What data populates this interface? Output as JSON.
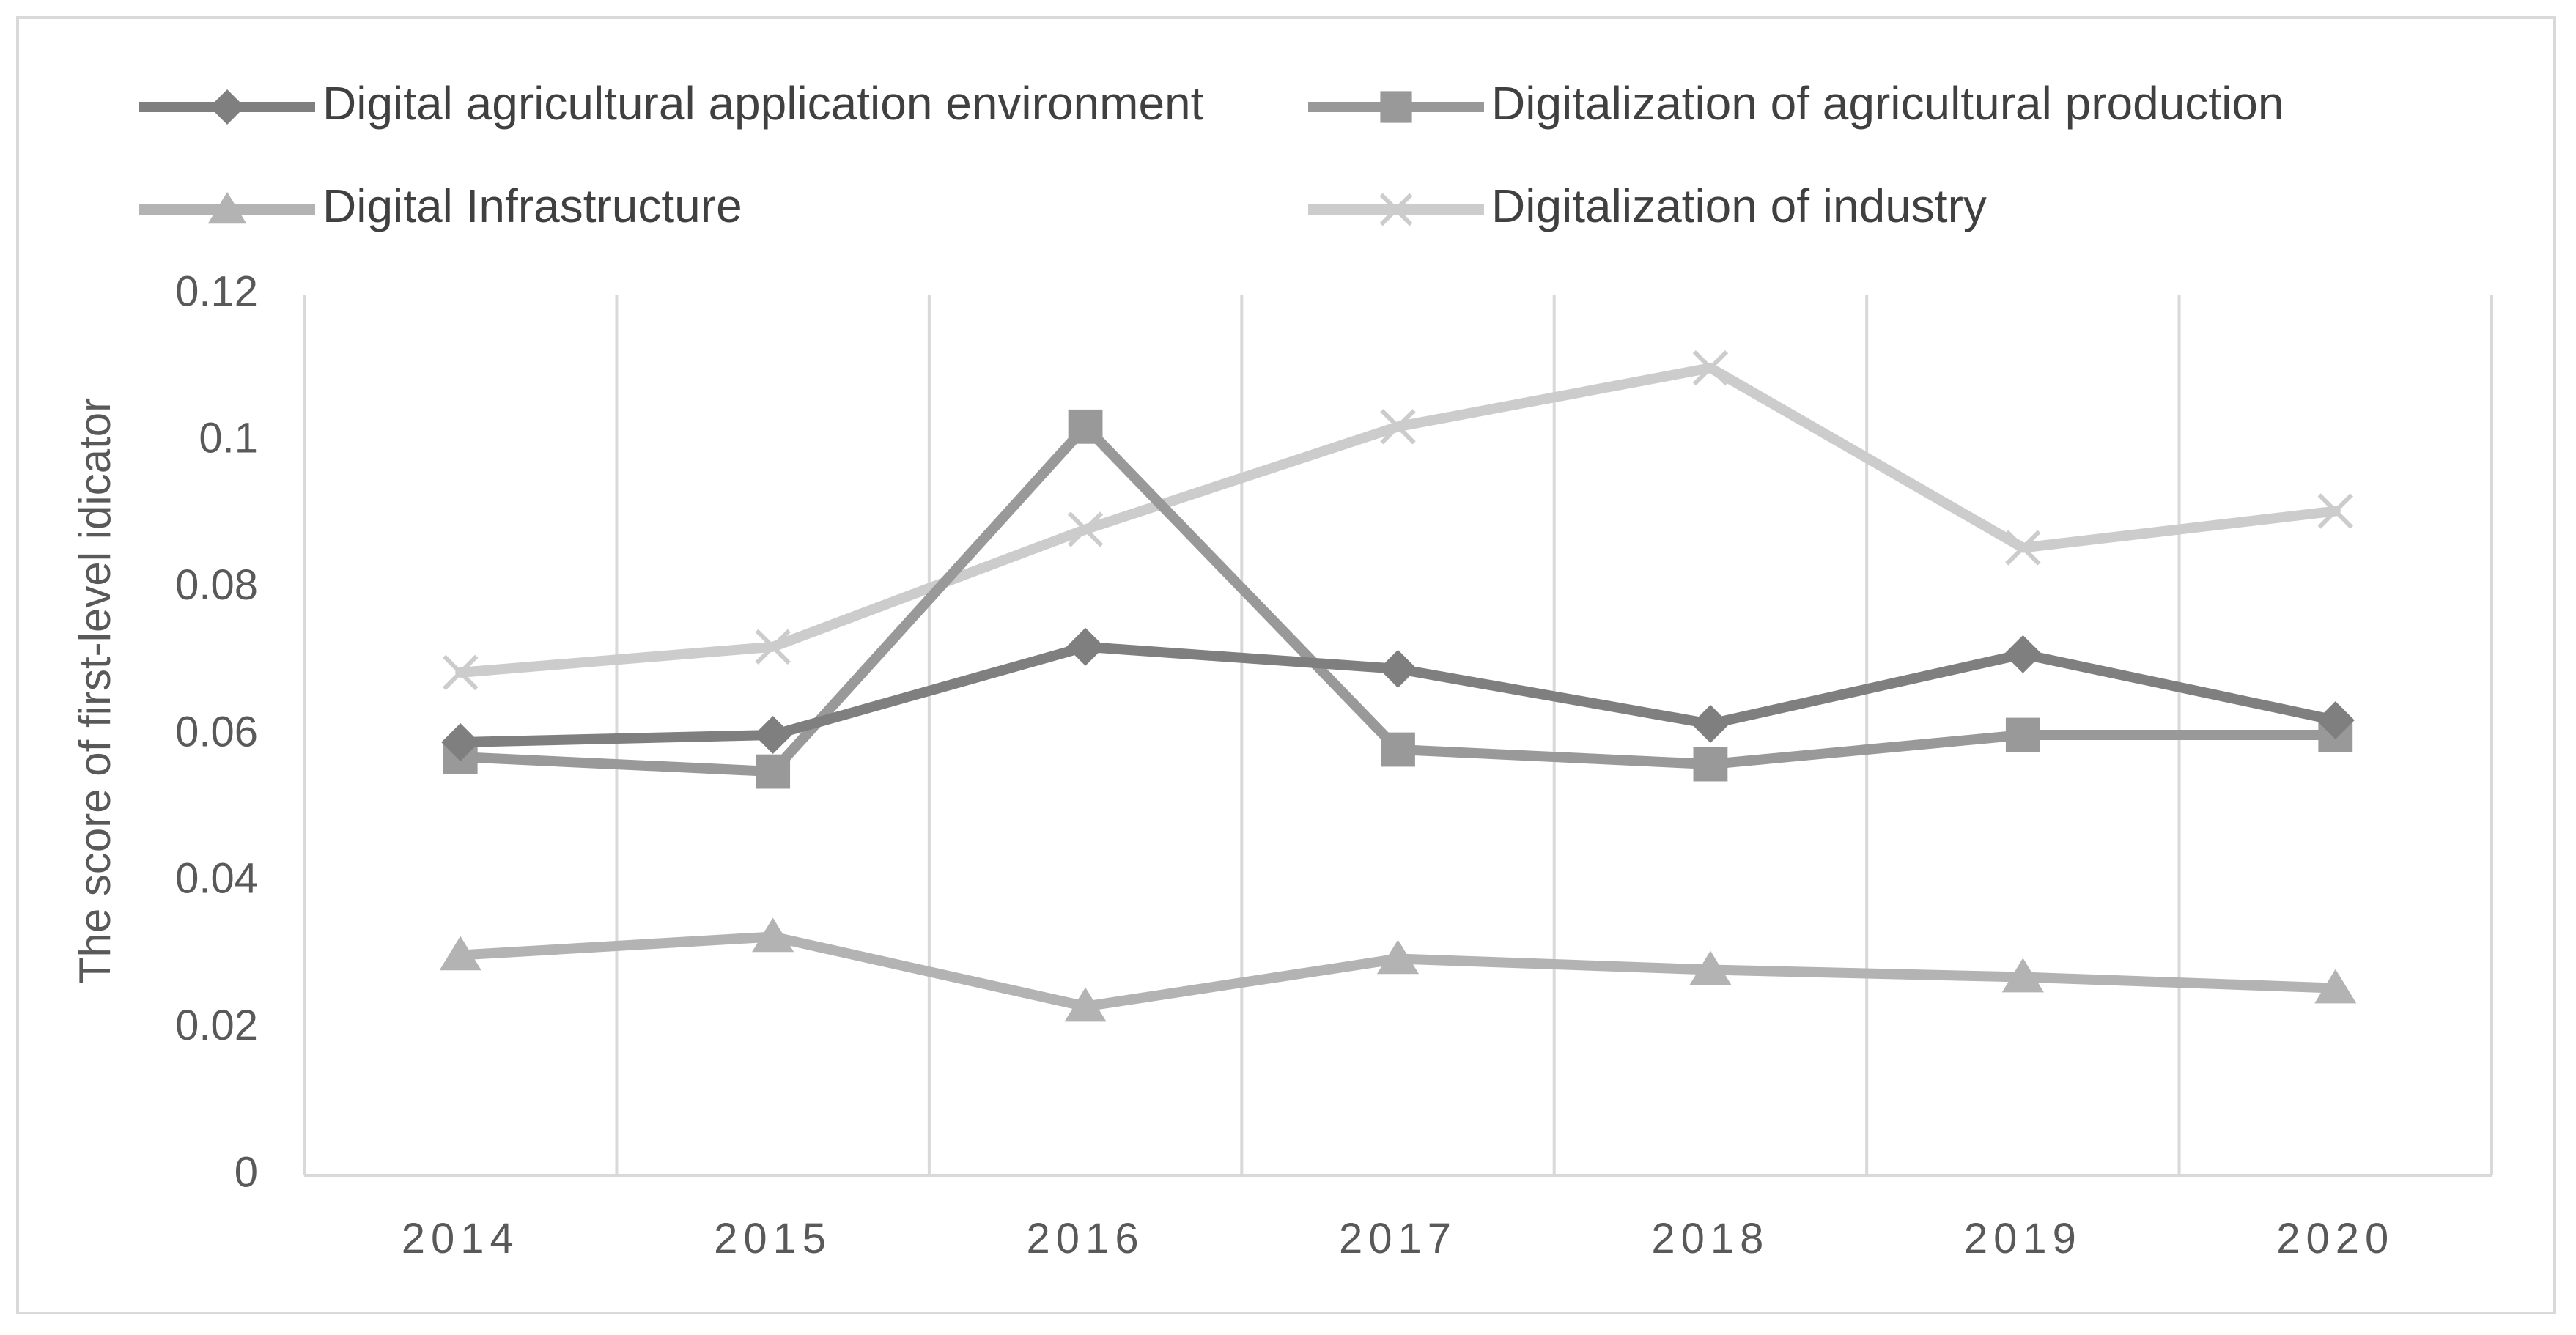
{
  "chart_data": {
    "type": "line",
    "title": "",
    "xlabel": "",
    "ylabel": "The score of first-level idicator",
    "categories": [
      "2014",
      "2015",
      "2016",
      "2017",
      "2018",
      "2019",
      "2020"
    ],
    "ylim": [
      0,
      0.12
    ],
    "yticks": [
      0,
      0.02,
      0.04,
      0.06,
      0.08,
      0.1,
      0.12
    ],
    "ytick_labels": [
      "0",
      "0.02",
      "0.04",
      "0.06",
      "0.08",
      "0.1",
      "0.12"
    ],
    "grid": "vertical",
    "legend_position": "top",
    "series": [
      {
        "name": "Digital agricultural application environment",
        "marker": "diamond",
        "color": "#7f7f7f",
        "values": [
          0.059,
          0.06,
          0.072,
          0.069,
          0.0615,
          0.071,
          0.062
        ]
      },
      {
        "name": "Digitalization of agricultural production",
        "marker": "square",
        "color": "#999999",
        "values": [
          0.057,
          0.055,
          0.102,
          0.058,
          0.056,
          0.06,
          0.06
        ]
      },
      {
        "name": "Digital Infrastructure",
        "marker": "triangle",
        "color": "#b3b3b3",
        "values": [
          0.03,
          0.0325,
          0.023,
          0.0295,
          0.028,
          0.027,
          0.0255
        ]
      },
      {
        "name": "Digitalization of industry",
        "marker": "x",
        "color": "#cccccc",
        "values": [
          0.0685,
          0.072,
          0.088,
          0.102,
          0.11,
          0.0855,
          0.0905
        ]
      }
    ]
  }
}
